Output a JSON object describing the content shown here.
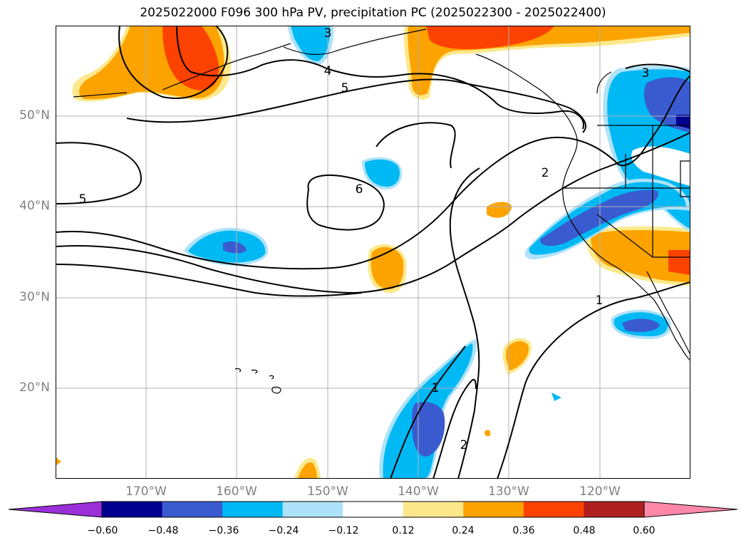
{
  "title": "2025022000 F096 300 hPa PV, precipitation PC (2025022300 - 2025022400)",
  "map": {
    "projection": "lat-lon",
    "lon_range": [
      -180,
      -110
    ],
    "lat_range": [
      10,
      60
    ],
    "grid": true,
    "lat_labels": [
      "50°N",
      "40°N",
      "30°N",
      "20°N"
    ],
    "lon_labels": [
      "170°W",
      "160°W",
      "150°W",
      "140°W",
      "130°W",
      "120°W"
    ],
    "contour_labels": [
      "5",
      "4",
      "3",
      "5",
      "6",
      "3",
      "2",
      "1",
      "1",
      "2"
    ],
    "colors": {
      "gridline": "#b0b0b0",
      "coast": "#000000"
    }
  },
  "colorbar": {
    "ticks": [
      "−0.60",
      "−0.48",
      "−0.36",
      "−0.24",
      "−0.12",
      "0.12",
      "0.24",
      "0.36",
      "0.48",
      "0.60"
    ],
    "colors": [
      "#9b30d9",
      "#000090",
      "#3a5bd0",
      "#00b9f4",
      "#aee2fa",
      "#ffffff",
      "#fde98c",
      "#fca300",
      "#fc4200",
      "#b01f20",
      "#ff87a8"
    ]
  }
}
